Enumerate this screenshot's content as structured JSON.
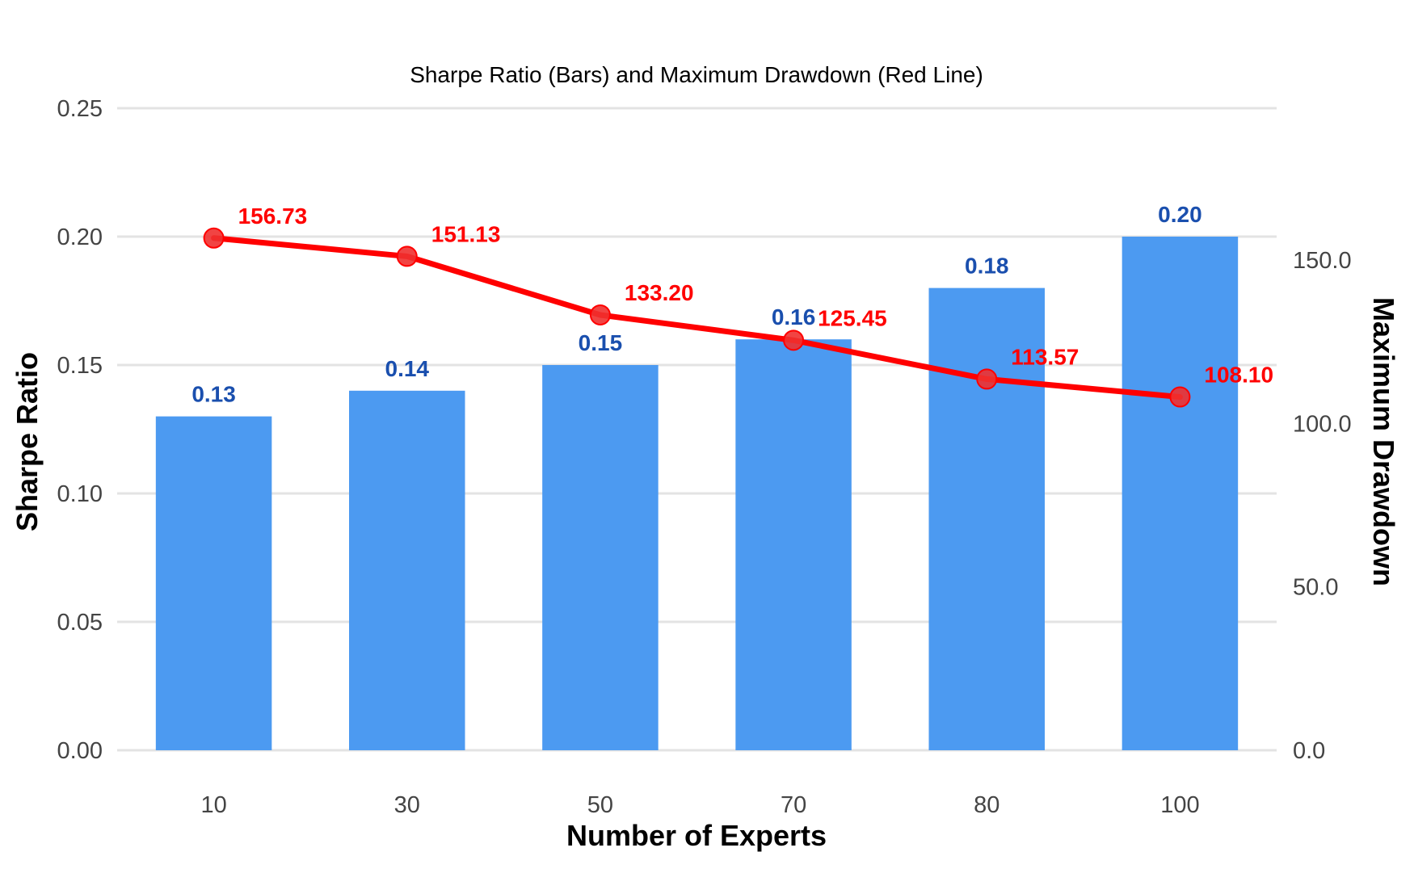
{
  "chart_data": {
    "type": "bar",
    "title": "Sharpe Ratio (Bars) and Maximum Drawdown (Red Line)",
    "xlabel": "Number of Experts",
    "ylabel": "Sharpe Ratio",
    "y2label": "Maximum Drawdown",
    "categories": [
      "10",
      "30",
      "50",
      "70",
      "80",
      "100"
    ],
    "ylim": [
      0,
      0.25
    ],
    "y2lim": [
      0,
      150
    ],
    "yticks": [
      "0.00",
      "0.05",
      "0.10",
      "0.15",
      "0.20",
      "0.25"
    ],
    "y2ticks": [
      "0.0",
      "50.0",
      "100.0",
      "150.0"
    ],
    "grid": true,
    "series": [
      {
        "name": "Sharpe Ratio",
        "type": "bar",
        "axis": "left",
        "color": "#4c9af1",
        "label_color": "#1a4fae",
        "values": [
          0.13,
          0.14,
          0.15,
          0.16,
          0.18,
          0.2
        ],
        "labels": [
          "0.13",
          "0.14",
          "0.15",
          "0.16",
          "0.18",
          "0.20"
        ]
      },
      {
        "name": "Maximum Drawdown",
        "type": "line",
        "axis": "right",
        "color": "#ff0000",
        "label_color": "#ff0000",
        "values": [
          156.73,
          151.13,
          133.2,
          125.45,
          113.57,
          108.1
        ],
        "labels": [
          "156.73",
          "151.13",
          "133.20",
          "125.45",
          "113.57",
          "108.10"
        ]
      }
    ]
  }
}
